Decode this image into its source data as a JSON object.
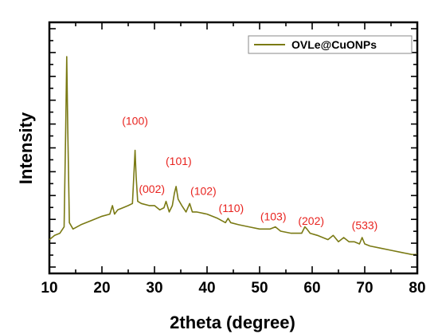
{
  "chart_data": {
    "type": "line",
    "xlabel": "2theta (degree)",
    "ylabel": "Intensity",
    "xlim": [
      10,
      80
    ],
    "xticks": [
      10,
      20,
      30,
      40,
      50,
      60,
      70,
      80
    ],
    "xtick_labels": [
      "10",
      "20",
      "30",
      "40",
      "50",
      "60",
      "70",
      "80"
    ],
    "ylim": [
      0,
      100
    ],
    "y_ticks_labeled": false,
    "grid": false,
    "legend_position": "top-right",
    "series": [
      {
        "name": "OVLe@CuONPs",
        "color": "#7a7a14",
        "x": [
          10.0,
          11.0,
          12.0,
          12.8,
          13.1,
          13.3,
          13.5,
          13.8,
          14.5,
          16,
          18,
          20,
          21.5,
          22,
          22.4,
          23,
          24,
          25,
          25.8,
          26.1,
          26.3,
          26.5,
          26.8,
          27.5,
          29,
          30,
          31,
          31.8,
          32.2,
          32.8,
          33.4,
          33.8,
          34.1,
          34.5,
          35.2,
          36,
          36.7,
          37.2,
          38,
          40,
          42,
          43.5,
          44,
          44.5,
          46,
          48,
          50,
          52,
          53,
          54,
          56,
          58,
          58.6,
          59,
          59.6,
          61,
          63,
          64,
          65,
          66,
          67,
          68,
          69,
          69.5,
          70,
          71,
          73,
          75,
          77,
          79,
          80
        ],
        "values": [
          8,
          10,
          11,
          14,
          60,
          94,
          60,
          16,
          13,
          15,
          17,
          19,
          20,
          24,
          20,
          22,
          23,
          24,
          25,
          40,
          50,
          38,
          26,
          25,
          24,
          24,
          22,
          23,
          26,
          21,
          24,
          30,
          33,
          27,
          24,
          21,
          25,
          21,
          21,
          20,
          18,
          16,
          18,
          16,
          15,
          14,
          13,
          13,
          14,
          12,
          11,
          11,
          14,
          13,
          11,
          10,
          8,
          10,
          7,
          9,
          7,
          7,
          6,
          9,
          6,
          5,
          4,
          3,
          2,
          1,
          1
        ]
      }
    ],
    "annotations": [
      {
        "text": "(100)",
        "x": 26.3,
        "y": 62
      },
      {
        "text": "(002)",
        "x": 29.5,
        "y": 30
      },
      {
        "text": "(101)",
        "x": 34.6,
        "y": 43
      },
      {
        "text": "(102)",
        "x": 39.3,
        "y": 29
      },
      {
        "text": "(110)",
        "x": 44.6,
        "y": 21
      },
      {
        "text": "(103)",
        "x": 52.6,
        "y": 17
      },
      {
        "text": "(202)",
        "x": 59.8,
        "y": 15
      },
      {
        "text": "(533)",
        "x": 70.0,
        "y": 13
      }
    ]
  }
}
